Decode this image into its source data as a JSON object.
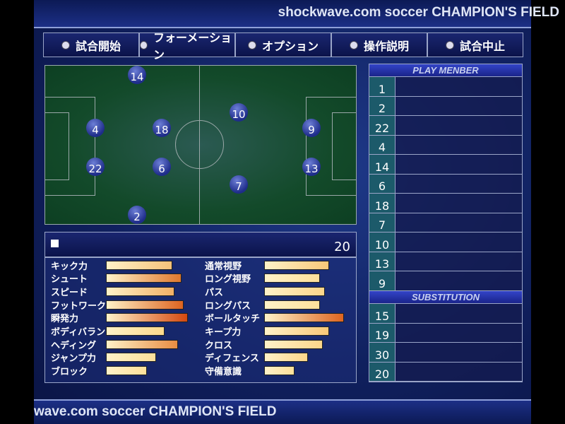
{
  "header": {
    "title": "shockwave.com soccer CHAMPION'S FIELD"
  },
  "footer": {
    "title": "wave.com soccer CHAMPION'S FIELD"
  },
  "menu": [
    {
      "label": "試合開始"
    },
    {
      "label": "フォーメーション"
    },
    {
      "label": "オプション"
    },
    {
      "label": "操作説明"
    },
    {
      "label": "試合中止"
    }
  ],
  "pitch": {
    "players": [
      "14",
      "4",
      "18",
      "22",
      "6",
      "2",
      "10",
      "7",
      "9",
      "13"
    ]
  },
  "player_panel": {
    "selected_number": "20",
    "stats_left": [
      {
        "label": "キック力",
        "value": 0.78,
        "color": "#f6c27a"
      },
      {
        "label": "シュート",
        "value": 0.89,
        "color": "#e0782e"
      },
      {
        "label": "スピード",
        "value": 0.81,
        "color": "#f2b066"
      },
      {
        "label": "フットワーク",
        "value": 0.92,
        "color": "#dd6420"
      },
      {
        "label": "瞬発力",
        "value": 0.97,
        "color": "#d44810"
      },
      {
        "label": "ボディバランス",
        "value": 0.69,
        "color": "#fcd98c"
      },
      {
        "label": "ヘディング",
        "value": 0.85,
        "color": "#e88c42"
      },
      {
        "label": "ジャンプ力",
        "value": 0.59,
        "color": "#fde09a"
      },
      {
        "label": "ブロック",
        "value": 0.48,
        "color": "#fde09a"
      }
    ],
    "stats_right": [
      {
        "label": "通常視野",
        "value": 0.77,
        "color": "#f8c878"
      },
      {
        "label": "ロング視野",
        "value": 0.66,
        "color": "#fde09a"
      },
      {
        "label": "パス",
        "value": 0.72,
        "color": "#fcd68a"
      },
      {
        "label": "ロングパス",
        "value": 0.66,
        "color": "#fde09a"
      },
      {
        "label": "ボールタッチ",
        "value": 0.94,
        "color": "#dd6420"
      },
      {
        "label": "キープ力",
        "value": 0.77,
        "color": "#f8c878"
      },
      {
        "label": "クロス",
        "value": 0.69,
        "color": "#fcd68a"
      },
      {
        "label": "ディフェンス",
        "value": 0.52,
        "color": "#fcd68a"
      },
      {
        "label": "守備意識",
        "value": 0.36,
        "color": "#fde09a"
      }
    ]
  },
  "play_member": {
    "title": "PLAY MENBER",
    "numbers": [
      "1",
      "2",
      "22",
      "4",
      "14",
      "6",
      "18",
      "7",
      "10",
      "13",
      "9"
    ]
  },
  "substitution": {
    "title": "SUBSTITUTION",
    "numbers": [
      "15",
      "19",
      "30",
      "20"
    ]
  }
}
